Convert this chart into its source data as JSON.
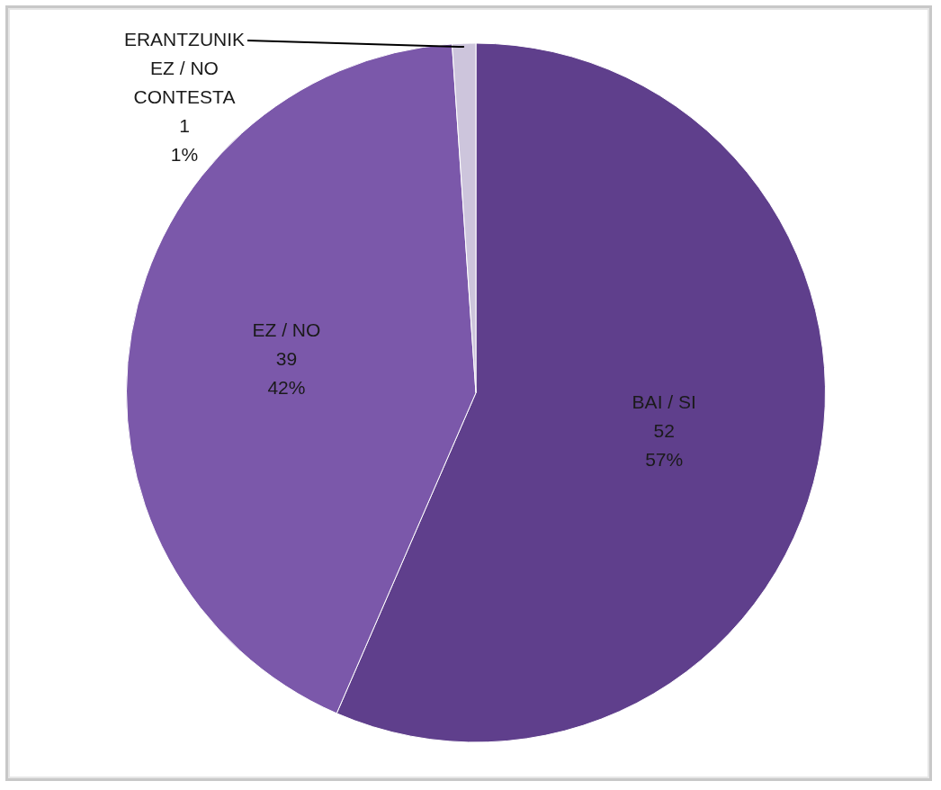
{
  "chart_data": {
    "type": "pie",
    "categories": [
      "BAI / SI",
      "EZ / NO",
      "ERANTZUNIK EZ / NO CONTESTA"
    ],
    "values": [
      52,
      39,
      1
    ],
    "colors": [
      "#5f3f8c",
      "#7b58aa",
      "#cdc5dc"
    ],
    "value_labels": [
      "52\n57%",
      "39\n42%",
      "1\n1%"
    ],
    "legend": false
  }
}
